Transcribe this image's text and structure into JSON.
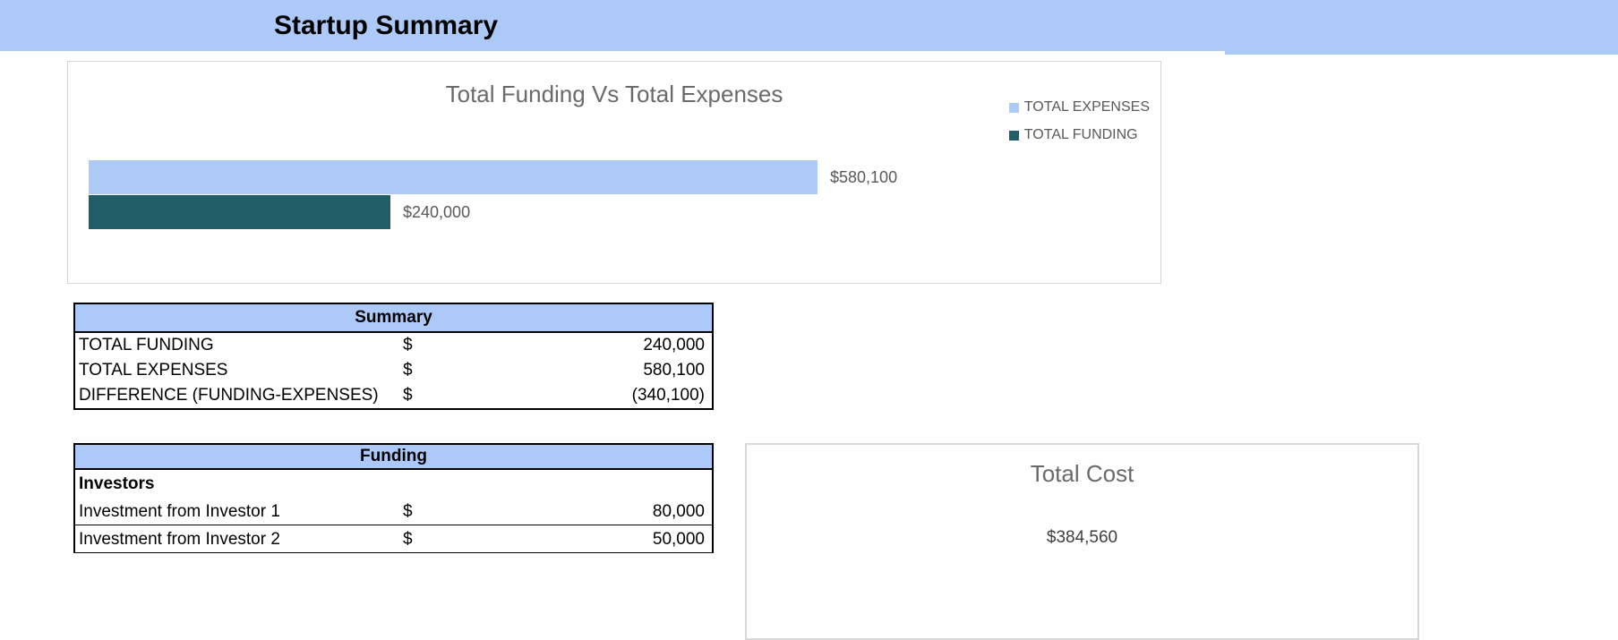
{
  "banner": {
    "title": "Startup Summary"
  },
  "colors": {
    "banner_blue": "#ADC9F7",
    "bar_light_blue": "#AECBF7",
    "bar_teal": "#215F68",
    "chart_title_gray": "#6A6A6A",
    "data_label_gray": "#595959"
  },
  "chart": {
    "title": "Total Funding Vs Total Expenses",
    "legend": [
      {
        "label": "TOTAL EXPENSES",
        "color": "#AECBF7"
      },
      {
        "label": "TOTAL FUNDING",
        "color": "#215F68"
      }
    ],
    "bars": [
      {
        "name": "TOTAL EXPENSES",
        "value": 580100,
        "label": "$580,100",
        "color": "#AECBF7"
      },
      {
        "name": "TOTAL FUNDING",
        "value": 240000,
        "label": "$240,000",
        "color": "#215F68"
      }
    ]
  },
  "chart_data": [
    {
      "type": "bar",
      "orientation": "horizontal",
      "title": "Total Funding Vs Total Expenses",
      "categories": [
        "TOTAL EXPENSES",
        "TOTAL FUNDING"
      ],
      "values": [
        580100,
        240000
      ],
      "data_labels": [
        "$580,100",
        "$240,000"
      ],
      "colors": [
        "#AECBF7",
        "#215F68"
      ],
      "legend": [
        "TOTAL EXPENSES",
        "TOTAL FUNDING"
      ],
      "legend_position": "top-right",
      "axes_visible": false,
      "grid": false
    },
    {
      "type": "bar",
      "title": "Total Cost",
      "categories": [
        "Total Cost"
      ],
      "values": [
        384560
      ],
      "data_labels": [
        "$384,560"
      ]
    }
  ],
  "summary_table": {
    "header": "Summary",
    "rows": [
      {
        "label": "TOTAL FUNDING",
        "currency": "$",
        "value": "240,000"
      },
      {
        "label": "TOTAL EXPENSES",
        "currency": "$",
        "value": "580,100"
      },
      {
        "label": "DIFFERENCE (FUNDING-EXPENSES)",
        "currency": "$",
        "value": "(340,100)"
      }
    ]
  },
  "funding_table": {
    "header": "Funding",
    "section": "Investors",
    "rows": [
      {
        "label": "Investment from Investor 1",
        "currency": "$",
        "value": "80,000"
      },
      {
        "label": "Investment from Investor 2",
        "currency": "$",
        "value": "50,000"
      }
    ]
  },
  "total_cost": {
    "title": "Total Cost",
    "value": "$384,560"
  }
}
